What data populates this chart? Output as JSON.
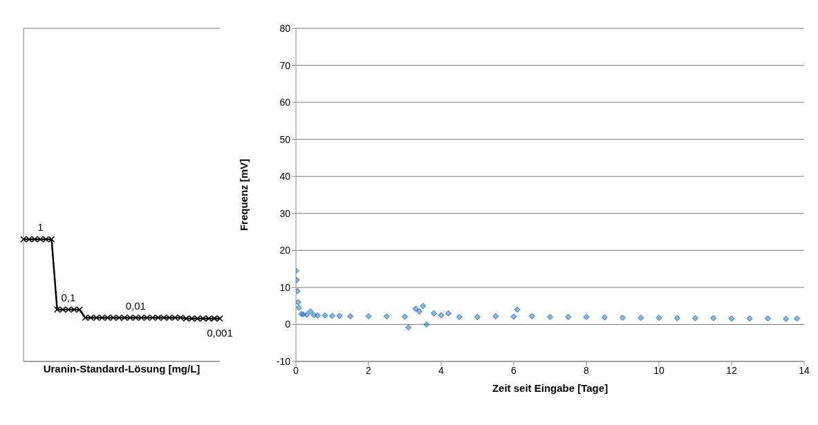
{
  "chart_data": [
    {
      "type": "line",
      "xlabel": "Uranin-Standard-Lösung [mg/L]",
      "categories": [
        null,
        null,
        null,
        null,
        null,
        null,
        null,
        null,
        null,
        null,
        null,
        null,
        null,
        null,
        null,
        null,
        null,
        null,
        null,
        null,
        null,
        null,
        null,
        null,
        null,
        null,
        null,
        null,
        null,
        null,
        null,
        null,
        null,
        null,
        null,
        null
      ],
      "series": [
        {
          "color": "#000000",
          "values": [
            23,
            23,
            23,
            23,
            23,
            23,
            4,
            4,
            4,
            4,
            4,
            1.8,
            1.8,
            1.8,
            1.8,
            1.8,
            1.8,
            1.8,
            1.8,
            1.8,
            1.8,
            1.8,
            1.8,
            1.8,
            1.8,
            1.8,
            1.8,
            1.8,
            1.8,
            1.6,
            1.6,
            1.6,
            1.6,
            1.6,
            1.6,
            1.6
          ]
        }
      ],
      "annotations": [
        "1",
        "0,1",
        "0,01",
        "0,001"
      ],
      "ylim": [
        -10,
        80
      ],
      "yticks": [
        -10,
        0,
        10,
        20,
        30,
        40,
        50,
        60,
        70,
        80
      ],
      "grid": "y",
      "tick_labels": false,
      "marker": "cross",
      "line_style": "solid",
      "legend": false
    },
    {
      "type": "scatter",
      "xlabel": "Zeit seit Eingabe [Tage]",
      "ylabel": "Frequenz [mV]",
      "x": [
        0,
        0.02,
        0.04,
        0.06,
        0.08,
        0.15,
        0.2,
        0.3,
        0.4,
        0.5,
        0.6,
        0.8,
        1.0,
        1.2,
        1.5,
        2,
        2.5,
        3,
        3.1,
        3.3,
        3.4,
        3.5,
        3.6,
        3.8,
        4,
        4.2,
        4.5,
        5,
        5.5,
        6,
        6.1,
        6.5,
        7,
        7.5,
        8,
        8.5,
        9,
        9.5,
        10,
        10.5,
        11,
        11.5,
        12,
        12.5,
        13,
        13.5,
        13.8
      ],
      "series": [
        {
          "color": "#1f6fba",
          "values": [
            14.5,
            12,
            9,
            6,
            4.5,
            2.8,
            2.7,
            2.6,
            3.5,
            2.5,
            2.4,
            2.4,
            2.3,
            2.3,
            2.2,
            2.2,
            2.2,
            2.1,
            -0.8,
            4.2,
            3.5,
            5,
            0,
            3,
            2.5,
            3,
            2,
            2,
            2.2,
            2.1,
            4,
            2.2,
            2,
            2,
            2,
            1.9,
            1.8,
            1.8,
            1.8,
            1.7,
            1.7,
            1.7,
            1.6,
            1.6,
            1.6,
            1.5,
            1.6
          ]
        }
      ],
      "xlim": [
        0,
        14
      ],
      "xticks": [
        0,
        2,
        4,
        6,
        8,
        10,
        12,
        14
      ],
      "ylim": [
        -10,
        80
      ],
      "yticks": [
        -10,
        0,
        10,
        20,
        30,
        40,
        50,
        60,
        70,
        80
      ],
      "grid": "y",
      "marker": "diamond",
      "legend": false
    }
  ]
}
